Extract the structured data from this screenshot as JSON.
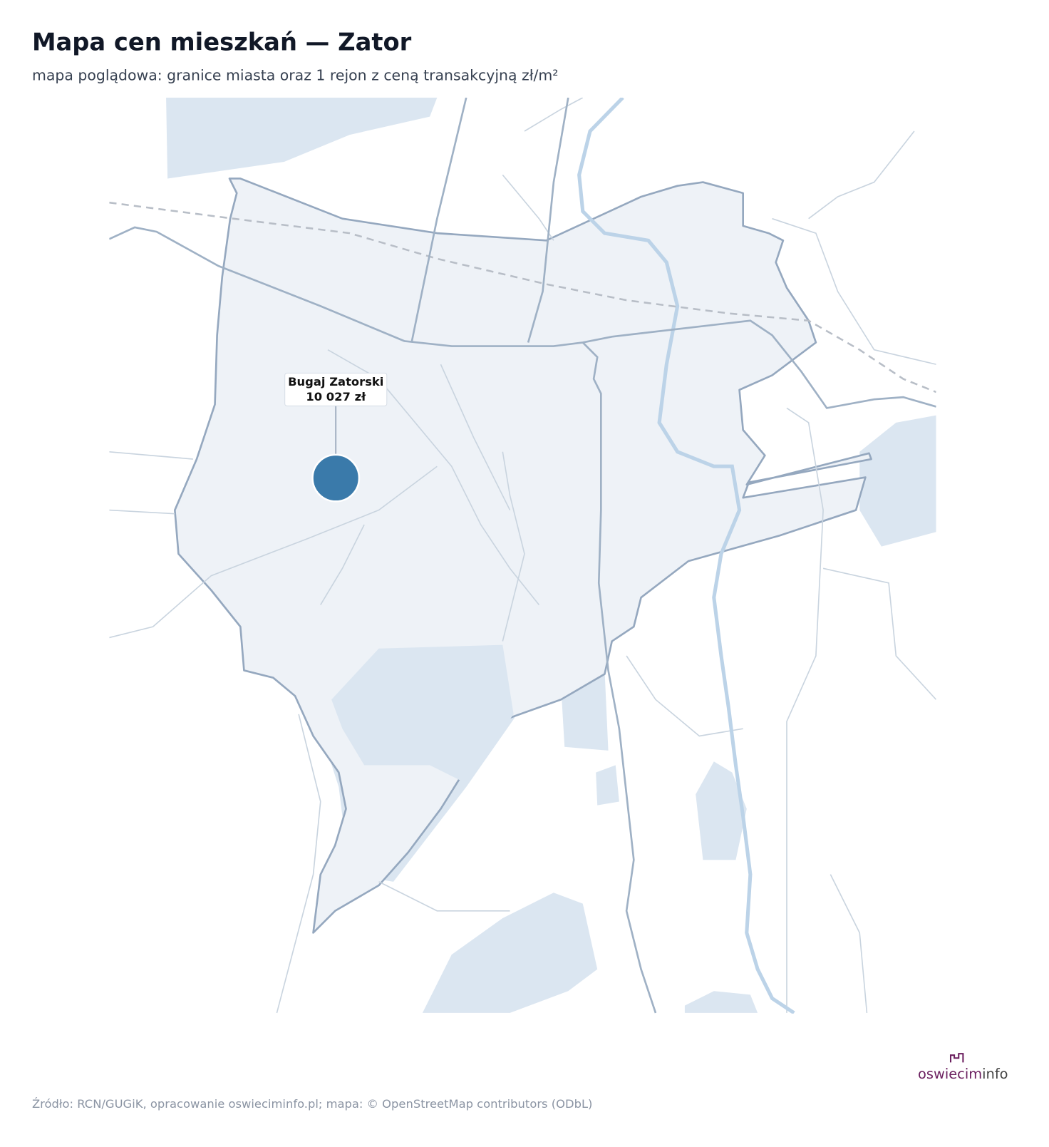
{
  "header": {
    "title": "Mapa cen mieszkań — Zator",
    "subtitle": "mapa poglądowa: granice miasta oraz 1 rejon z ceną transakcyjną zł/m²"
  },
  "regions": [
    {
      "name": "Bugaj Zatorski",
      "value": 10027,
      "value_label": "10 027 zł",
      "color": "#3a7aaa"
    }
  ],
  "footer": {
    "source": "Źródło: RCN/GUGiK, opracowanie oswieciminfo.pl; mapa: © OpenStreetMap contributors (ODbL)",
    "logo": {
      "brand": "oswiecim",
      "suffix": "info"
    }
  }
}
